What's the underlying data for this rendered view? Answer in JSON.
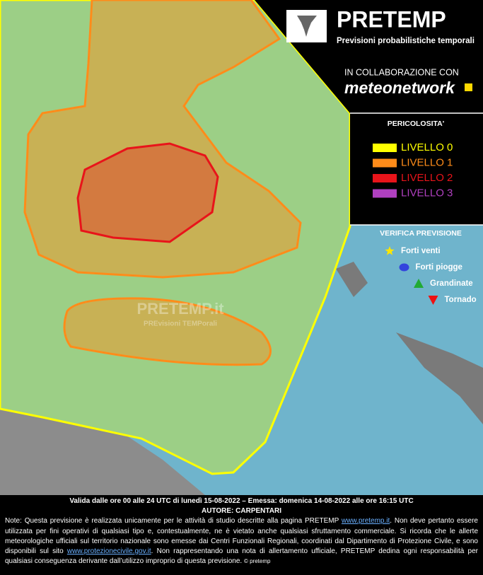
{
  "header": {
    "title": "PRETEMP",
    "subtitle": "Previsioni probabilistiche temporali"
  },
  "partner": {
    "label": "IN COLLABORAZIONE CON",
    "name": "meteonetwork"
  },
  "legend": {
    "title": "PERICOLOSITA'",
    "levels": [
      {
        "label": "LIVELLO 0",
        "color": "#ffff00"
      },
      {
        "label": "LIVELLO 1",
        "color": "#ff8c1a"
      },
      {
        "label": "LIVELLO 2",
        "color": "#e8141a"
      },
      {
        "label": "LIVELLO 3",
        "color": "#b040c0"
      }
    ]
  },
  "verification": {
    "title": "VERIFICA PREVISIONE",
    "items": [
      "Forti venti",
      "Forti piogge",
      "Grandinate",
      "Tornado"
    ]
  },
  "watermark": {
    "title": "PRETEMP.it",
    "subtitle": "PREvisioni TEMPorali"
  },
  "footer": {
    "validity": "Valida dalle ore 00 alle 24 UTC di lunedì 15-08-2022 – Emessa: domenica 14-08-2022 alle ore 16:15 UTC",
    "author": "AUTORE: CARPENTARI",
    "note": [
      "Note: Questa previsione è realizzata unicamente per le attività di studio descritte alla pagina PRETEMP ",
      "www.pretemp.it",
      ". Non deve pertanto essere utilizzata per fini operativi di qualsiasi tipo e, contestualmente, ne è vietato anche qualsiasi sfruttamento commerciale. Si ricorda che le allerte meteorologiche ufficiali sul territorio nazionale sono emesse dai Centri Funzionali Regionali, coordinati dal Dipartimento di Protezione Civile, e sono disponibili sul sito ",
      "www.protezionecivile.gov.it",
      ". Non rappresentando una nota di allertamento ufficiale, PRETEMP dedina ogni responsabilità per qualsiasi conseguenza derivante dall’utilizzo improprio di questa previsione."
    ],
    "copyright": "© pretemp"
  }
}
